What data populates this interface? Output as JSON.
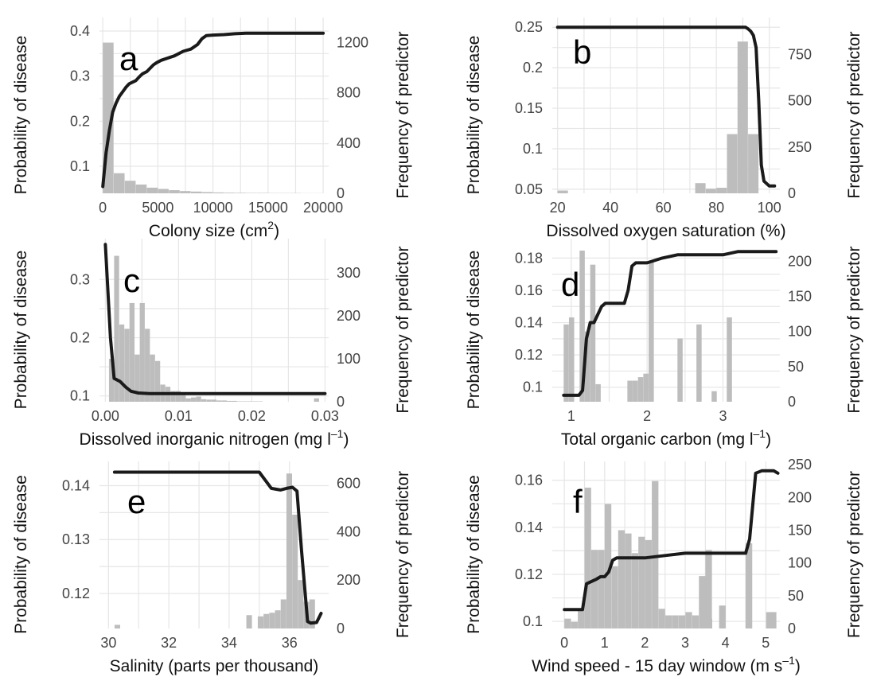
{
  "chart_data": [
    {
      "id": "a",
      "type": "bar+line",
      "letter": "a",
      "xlabel": "Colony size (cm",
      "xlabel_sup": "2",
      "xlabel_tail": ")",
      "ylabel_left": "Probability of disease",
      "ylabel_right": "Frequency of predictor",
      "xlim": [
        -300,
        20500
      ],
      "xticks": [
        0,
        5000,
        10000,
        15000,
        20000
      ],
      "ylim_left": [
        0.04,
        0.43
      ],
      "yticks_left": [
        0.1,
        0.2,
        0.3,
        0.4
      ],
      "ylim_right": [
        0,
        1400
      ],
      "yticks_right": [
        0,
        400,
        800,
        1200
      ],
      "histogram": {
        "bin_start": 0,
        "bin_width": 1000,
        "counts": [
          1200,
          160,
          100,
          70,
          45,
          35,
          25,
          18,
          14,
          10,
          7,
          5,
          4,
          3,
          3,
          2,
          2,
          2,
          1,
          1
        ]
      },
      "curve": {
        "x": [
          0,
          300,
          600,
          900,
          1200,
          1500,
          1800,
          2100,
          2400,
          3000,
          3300,
          3600,
          4000,
          4600,
          4900,
          5300,
          5900,
          6500,
          7300,
          8000,
          8600,
          9000,
          9400,
          10000,
          11000,
          12000,
          13000,
          20000
        ],
        "y": [
          0.055,
          0.13,
          0.18,
          0.22,
          0.24,
          0.255,
          0.265,
          0.275,
          0.283,
          0.29,
          0.298,
          0.305,
          0.31,
          0.325,
          0.33,
          0.335,
          0.34,
          0.345,
          0.355,
          0.36,
          0.37,
          0.383,
          0.39,
          0.391,
          0.392,
          0.394,
          0.395,
          0.395
        ]
      }
    },
    {
      "id": "b",
      "type": "bar+line",
      "letter": "b",
      "xlabel": "Dissolved oxygen saturation (%)",
      "xlabel_sup": "",
      "xlabel_tail": "",
      "ylabel_left": "Probability of disease",
      "ylabel_right": "Frequency of predictor",
      "xlim": [
        18,
        104
      ],
      "xticks": [
        20,
        40,
        60,
        80,
        100
      ],
      "ylim_left": [
        0.045,
        0.262
      ],
      "yticks_left": [
        0.05,
        0.1,
        0.15,
        0.2,
        0.25
      ],
      "ylim_right": [
        0,
        950
      ],
      "yticks_right": [
        0,
        250,
        500,
        750
      ],
      "histogram": {
        "bin_start": 20,
        "bin_width": 4,
        "counts": [
          15,
          0,
          0,
          0,
          0,
          0,
          0,
          0,
          0,
          0,
          0,
          0,
          0,
          55,
          25,
          30,
          320,
          820,
          320
        ]
      },
      "curve": {
        "x": [
          20,
          91,
          92,
          93,
          94,
          95,
          96,
          97,
          98,
          100,
          102
        ],
        "y": [
          0.25,
          0.25,
          0.248,
          0.245,
          0.24,
          0.225,
          0.16,
          0.08,
          0.06,
          0.054,
          0.054
        ]
      }
    },
    {
      "id": "c",
      "type": "bar+line",
      "letter": "c",
      "xlabel": "Dissolved inorganic nitrogen (mg l",
      "xlabel_sup": "–1",
      "xlabel_tail": ")",
      "ylabel_left": "Probability of disease",
      "ylabel_right": "Frequency of predictor",
      "xlim": [
        -0.0008,
        0.0305
      ],
      "xticks": [
        0.0,
        0.01,
        0.02,
        0.03
      ],
      "xticklabels": [
        "0.00",
        "0.01",
        "0.02",
        "0.03"
      ],
      "ylim_left": [
        0.09,
        0.37
      ],
      "yticks_left": [
        0.1,
        0.2,
        0.3
      ],
      "ylim_right": [
        0,
        380
      ],
      "yticks_right": [
        0,
        100,
        200,
        300
      ],
      "histogram": {
        "bin_start": 0.0005,
        "bin_width": 0.0007,
        "counts": [
          100,
          340,
          180,
          170,
          230,
          110,
          230,
          170,
          110,
          95,
          40,
          35,
          25,
          25,
          20,
          8,
          10,
          12,
          6,
          5,
          5,
          3,
          3,
          2,
          2,
          1,
          1,
          1,
          1,
          1,
          0,
          0,
          0,
          0,
          0,
          0,
          0,
          0,
          0,
          0,
          8
        ]
      },
      "curve": {
        "x": [
          0.0,
          0.0007,
          0.0012,
          0.002,
          0.0028,
          0.0035,
          0.0045,
          0.006,
          0.01,
          0.02,
          0.03
        ],
        "y": [
          0.36,
          0.2,
          0.13,
          0.125,
          0.115,
          0.108,
          0.105,
          0.104,
          0.104,
          0.104,
          0.104
        ]
      }
    },
    {
      "id": "d",
      "type": "bar+line",
      "letter": "d",
      "xlabel": "Total organic carbon (mg l",
      "xlabel_sup": "–1",
      "xlabel_tail": ")",
      "ylabel_left": "Probability of disease",
      "ylabel_right": "Frequency of predictor",
      "xlim": [
        0.75,
        3.75
      ],
      "xticks": [
        1,
        2,
        3
      ],
      "ylim_left": [
        0.091,
        0.192
      ],
      "yticks_left": [
        0.1,
        0.12,
        0.14,
        0.16,
        0.18
      ],
      "ylim_right": [
        0,
        232
      ],
      "yticks_right": [
        0,
        50,
        100,
        150,
        200
      ],
      "histogram": {
        "bin_start": 0.9,
        "bin_width": 0.07,
        "counts": [
          110,
          120,
          0,
          215,
          100,
          195,
          25,
          0,
          0,
          0,
          0,
          0,
          30,
          30,
          35,
          40,
          200,
          0,
          0,
          0,
          0,
          0,
          0,
          0,
          0,
          0,
          0,
          0,
          0,
          0,
          0,
          0,
          0,
          0,
          0,
          0,
          0,
          0,
          0,
          0
        ]
      },
      "histogram_override": [
        [
          2.4,
          90
        ],
        [
          2.65,
          110
        ],
        [
          2.85,
          15
        ],
        [
          3.05,
          120
        ]
      ],
      "curve": {
        "x": [
          0.9,
          1.1,
          1.15,
          1.2,
          1.25,
          1.3,
          1.35,
          1.4,
          1.45,
          1.6,
          1.7,
          1.75,
          1.8,
          1.85,
          2.0,
          2.2,
          2.4,
          3.0,
          3.2,
          3.7
        ],
        "y": [
          0.095,
          0.095,
          0.098,
          0.13,
          0.14,
          0.14,
          0.145,
          0.15,
          0.152,
          0.152,
          0.152,
          0.16,
          0.175,
          0.177,
          0.177,
          0.18,
          0.182,
          0.182,
          0.184,
          0.184
        ]
      }
    },
    {
      "id": "e",
      "type": "bar+line",
      "letter": "e",
      "xlabel": "Salinity (parts per thousand)",
      "xlabel_sup": "",
      "xlabel_tail": "",
      "ylabel_left": "Probability of disease",
      "ylabel_right": "Frequency of predictor",
      "xlim": [
        29.7,
        37.3
      ],
      "xticks": [
        30,
        32,
        34,
        36
      ],
      "ylim_left": [
        0.1135,
        0.1445
      ],
      "yticks_left": [
        0.12,
        0.13,
        0.14
      ],
      "ylim_right": [
        0,
        690
      ],
      "yticks_right": [
        0,
        200,
        400,
        600
      ],
      "histogram": {
        "bin_start": 30.2,
        "bin_width": 0.19,
        "counts": [
          15,
          0,
          0,
          0,
          0,
          0,
          0,
          0,
          0,
          0,
          0,
          0,
          0,
          0,
          0,
          0,
          0,
          0,
          0,
          0,
          0,
          0,
          0,
          55,
          0,
          50,
          60,
          65,
          75,
          120,
          640,
          470,
          200,
          110,
          120
        ]
      },
      "curve": {
        "x": [
          30.2,
          35.0,
          35.2,
          35.4,
          35.7,
          35.9,
          36.1,
          36.25,
          36.4,
          36.6,
          36.7,
          36.9,
          37.05
        ],
        "y": [
          0.1425,
          0.1425,
          0.141,
          0.1395,
          0.1392,
          0.1395,
          0.1397,
          0.139,
          0.128,
          0.1148,
          0.1145,
          0.1146,
          0.1163
        ]
      }
    },
    {
      "id": "f",
      "type": "bar+line",
      "letter": "f",
      "xlabel": "Wind speed - 15 day window (m s",
      "xlabel_sup": "–1",
      "xlabel_tail": ")",
      "ylabel_left": "Probability of disease",
      "ylabel_right": "Frequency of predictor",
      "xlim": [
        -0.3,
        5.35
      ],
      "xticks": [
        0,
        1,
        2,
        3,
        4,
        5
      ],
      "ylim_left": [
        0.097,
        0.168
      ],
      "yticks_left": [
        0.1,
        0.12,
        0.14,
        0.16
      ],
      "ylim_right": [
        0,
        255
      ],
      "yticks_right": [
        0,
        50,
        100,
        150,
        200,
        250
      ],
      "histogram": {
        "bin_start": 0.0,
        "bin_width": 0.167,
        "counts": [
          15,
          10,
          30,
          215,
          120,
          120,
          190,
          95,
          150,
          145,
          115,
          140,
          135,
          225,
          30,
          20,
          20,
          20,
          25,
          20,
          80,
          15,
          0,
          35,
          0,
          0,
          0,
          0,
          0,
          0,
          25
        ]
      },
      "histogram_override": [
        [
          3.5,
          120
        ],
        [
          4.5,
          130
        ],
        [
          5.1,
          25
        ]
      ],
      "curve": {
        "x": [
          0.0,
          0.45,
          0.55,
          0.8,
          0.9,
          1.0,
          1.1,
          1.2,
          1.3,
          1.5,
          2.0,
          2.5,
          3.0,
          3.5,
          4.0,
          4.5,
          4.6,
          4.75,
          4.9,
          5.2,
          5.3
        ],
        "y": [
          0.105,
          0.105,
          0.116,
          0.118,
          0.119,
          0.119,
          0.121,
          0.126,
          0.127,
          0.127,
          0.127,
          0.128,
          0.129,
          0.129,
          0.129,
          0.129,
          0.135,
          0.163,
          0.164,
          0.164,
          0.163
        ]
      }
    }
  ]
}
